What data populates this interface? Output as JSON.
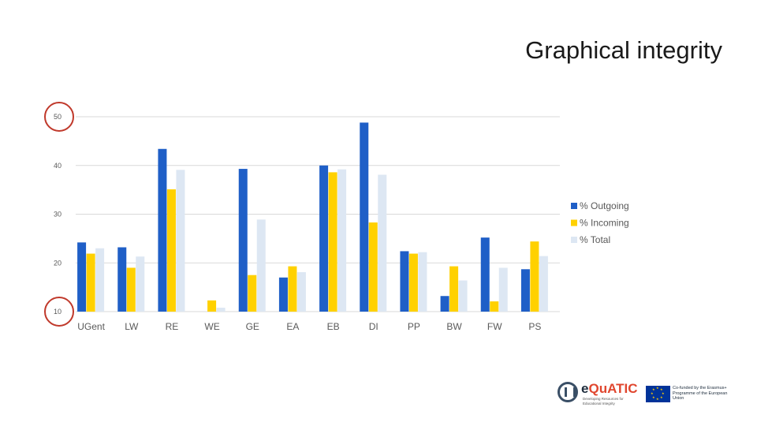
{
  "slide": {
    "title": "Graphical integrity"
  },
  "chart_data": {
    "type": "bar",
    "categories": [
      "UGent",
      "LW",
      "RE",
      "WE",
      "GE",
      "EA",
      "EB",
      "DI",
      "PP",
      "BW",
      "FW",
      "PS"
    ],
    "series": [
      {
        "name": "% Outgoing",
        "color": "#1f5fc7",
        "values": [
          24.2,
          23.2,
          43.4,
          null,
          39.3,
          17.0,
          40.0,
          48.8,
          22.4,
          13.2,
          25.2,
          18.7
        ]
      },
      {
        "name": "% Incoming",
        "color": "#ffd100",
        "values": [
          21.9,
          19.0,
          35.1,
          12.3,
          17.5,
          19.3,
          38.6,
          28.3,
          21.9,
          19.3,
          12.1,
          24.4
        ]
      },
      {
        "name": "% Total",
        "color": "#dde7f3",
        "values": [
          23.0,
          21.3,
          39.1,
          10.8,
          28.9,
          18.1,
          39.2,
          38.1,
          22.2,
          16.4,
          19.0,
          21.4
        ]
      }
    ],
    "ylim": [
      10,
      50
    ],
    "yticks": [
      10,
      20,
      30,
      40,
      50
    ],
    "grid": true,
    "legend_position": "right",
    "circled_ticks": [
      50,
      10
    ],
    "circle_color": "#c0392b"
  },
  "logos": {
    "equatic_name_prefix": "e",
    "equatic_name_main": "QuATIC",
    "equatic_tagline": "Developing Resources for Educational Integrity",
    "eu_text": "Co-funded by the Erasmus+ Programme of the European Union"
  }
}
